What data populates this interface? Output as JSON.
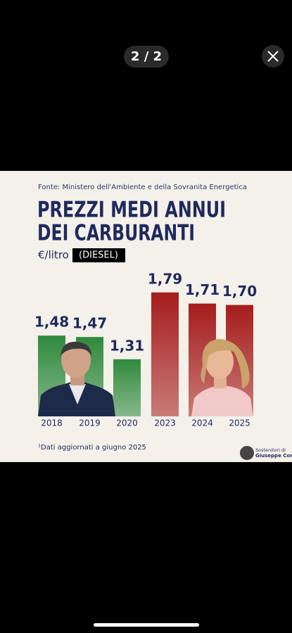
{
  "viewer": {
    "counter": "2 / 2"
  },
  "chart_data": {
    "type": "bar",
    "source": "Fonte: Ministero dell'Ambiente e della Sovranita Energetica",
    "title": [
      "PREZZI MEDI ANNUI",
      "DEI CARBURANTI"
    ],
    "unit": "€/litro",
    "tag": "(DIESEL)",
    "categories": [
      "2018",
      "2019",
      "2020",
      "2023",
      "2024",
      "2025"
    ],
    "values": [
      1.48,
      1.47,
      1.31,
      1.79,
      1.71,
      1.7
    ],
    "value_labels": [
      "1,48",
      "1,47",
      "1,31",
      "1,79",
      "1,71",
      "1,70"
    ],
    "colors": [
      "#2f8a3d",
      "#2f8a3d",
      "#2f8a3d",
      "#a51c1c",
      "#a51c1c",
      "#a51c1c"
    ],
    "ylim": [
      0.9,
      1.9
    ],
    "footnote": "¹Dati aggiornati a giugno 2025",
    "logo": [
      "Sostenitori di",
      "Giuseppe Conte"
    ]
  }
}
